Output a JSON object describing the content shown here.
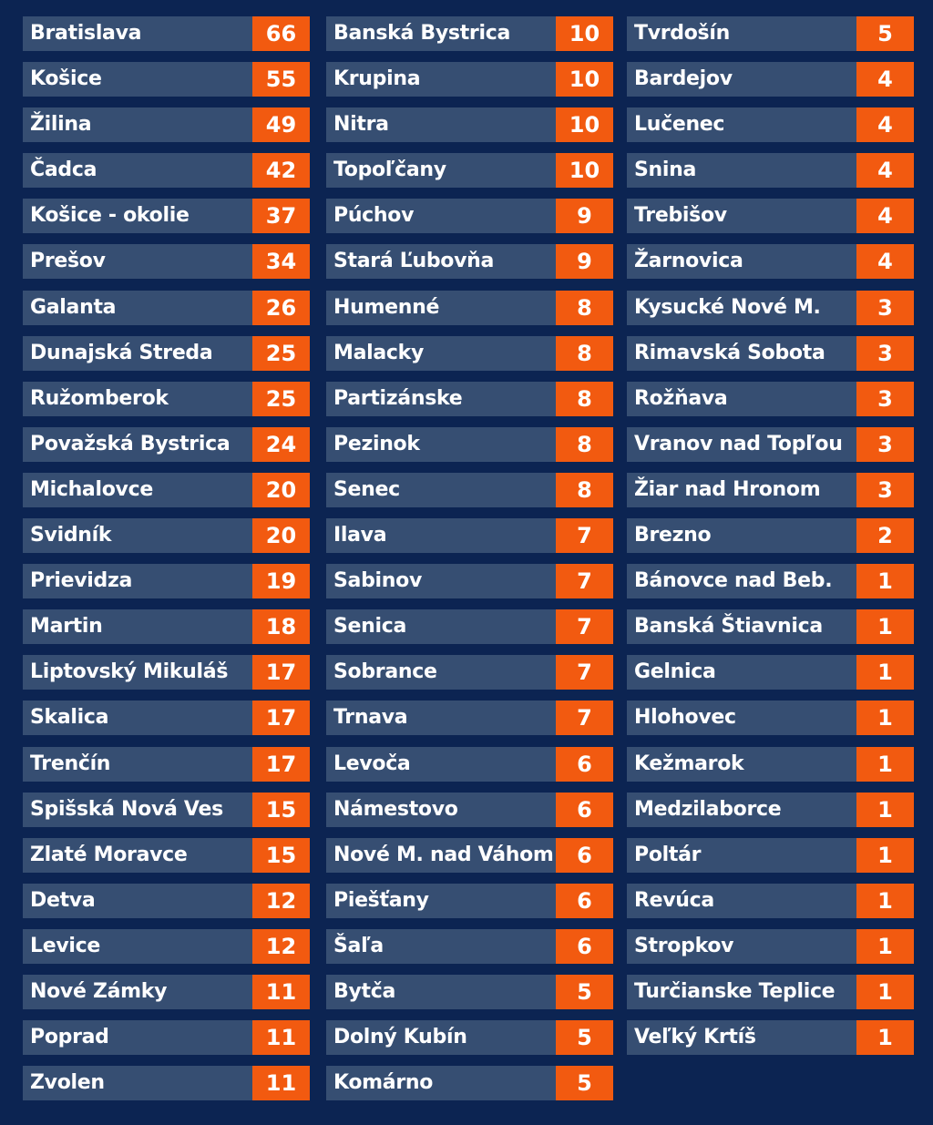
{
  "colors": {
    "background": "#0c2452",
    "row": "#364e72",
    "value": "#f25a10"
  },
  "chart_data": {
    "type": "table",
    "columns": [
      [
        {
          "name": "Bratislava",
          "value": 66
        },
        {
          "name": "Košice",
          "value": 55
        },
        {
          "name": "Žilina",
          "value": 49
        },
        {
          "name": "Čadca",
          "value": 42
        },
        {
          "name": "Košice - okolie",
          "value": 37
        },
        {
          "name": "Prešov",
          "value": 34
        },
        {
          "name": "Galanta",
          "value": 26
        },
        {
          "name": "Dunajská Streda",
          "value": 25
        },
        {
          "name": "Ružomberok",
          "value": 25
        },
        {
          "name": "Považská Bystrica",
          "value": 24
        },
        {
          "name": "Michalovce",
          "value": 20
        },
        {
          "name": "Svidník",
          "value": 20
        },
        {
          "name": "Prievidza",
          "value": 19
        },
        {
          "name": "Martin",
          "value": 18
        },
        {
          "name": "Liptovský Mikuláš",
          "value": 17
        },
        {
          "name": "Skalica",
          "value": 17
        },
        {
          "name": "Trenčín",
          "value": 17
        },
        {
          "name": "Spišská Nová Ves",
          "value": 15
        },
        {
          "name": "Zlaté Moravce",
          "value": 15
        },
        {
          "name": "Detva",
          "value": 12
        },
        {
          "name": "Levice",
          "value": 12
        },
        {
          "name": "Nové Zámky",
          "value": 11
        },
        {
          "name": "Poprad",
          "value": 11
        },
        {
          "name": "Zvolen",
          "value": 11
        }
      ],
      [
        {
          "name": "Banská Bystrica",
          "value": 10
        },
        {
          "name": "Krupina",
          "value": 10
        },
        {
          "name": "Nitra",
          "value": 10
        },
        {
          "name": "Topoľčany",
          "value": 10
        },
        {
          "name": "Púchov",
          "value": 9
        },
        {
          "name": "Stará Ľubovňa",
          "value": 9
        },
        {
          "name": "Humenné",
          "value": 8
        },
        {
          "name": "Malacky",
          "value": 8
        },
        {
          "name": "Partizánske",
          "value": 8
        },
        {
          "name": "Pezinok",
          "value": 8
        },
        {
          "name": "Senec",
          "value": 8
        },
        {
          "name": "Ilava",
          "value": 7
        },
        {
          "name": "Sabinov",
          "value": 7
        },
        {
          "name": "Senica",
          "value": 7
        },
        {
          "name": "Sobrance",
          "value": 7
        },
        {
          "name": "Trnava",
          "value": 7
        },
        {
          "name": "Levoča",
          "value": 6
        },
        {
          "name": "Námestovo",
          "value": 6
        },
        {
          "name": "Nové M. nad Váhom",
          "value": 6
        },
        {
          "name": "Piešťany",
          "value": 6
        },
        {
          "name": "Šaľa",
          "value": 6
        },
        {
          "name": "Bytča",
          "value": 5
        },
        {
          "name": "Dolný Kubín",
          "value": 5
        },
        {
          "name": "Komárno",
          "value": 5
        }
      ],
      [
        {
          "name": "Tvrdošín",
          "value": 5
        },
        {
          "name": "Bardejov",
          "value": 4
        },
        {
          "name": "Lučenec",
          "value": 4
        },
        {
          "name": "Snina",
          "value": 4
        },
        {
          "name": "Trebišov",
          "value": 4
        },
        {
          "name": "Žarnovica",
          "value": 4
        },
        {
          "name": "Kysucké Nové M.",
          "value": 3
        },
        {
          "name": "Rimavská Sobota",
          "value": 3
        },
        {
          "name": "Rožňava",
          "value": 3
        },
        {
          "name": "Vranov nad Topľou",
          "value": 3
        },
        {
          "name": "Žiar nad Hronom",
          "value": 3
        },
        {
          "name": "Brezno",
          "value": 2
        },
        {
          "name": "Bánovce nad Beb.",
          "value": 1
        },
        {
          "name": "Banská Štiavnica",
          "value": 1
        },
        {
          "name": "Gelnica",
          "value": 1
        },
        {
          "name": "Hlohovec",
          "value": 1
        },
        {
          "name": "Kežmarok",
          "value": 1
        },
        {
          "name": "Medzilaborce",
          "value": 1
        },
        {
          "name": "Poltár",
          "value": 1
        },
        {
          "name": "Revúca",
          "value": 1
        },
        {
          "name": "Stropkov",
          "value": 1
        },
        {
          "name": "Turčianske Teplice",
          "value": 1
        },
        {
          "name": "Veľký Krtíš",
          "value": 1
        }
      ]
    ]
  }
}
